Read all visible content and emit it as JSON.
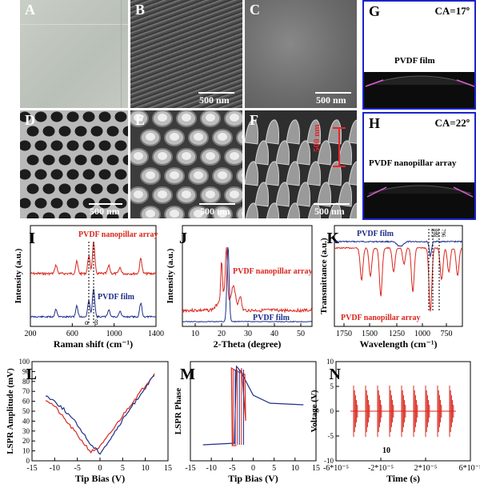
{
  "panels": {
    "A": {
      "label": "A"
    },
    "B": {
      "label": "B",
      "scale": "500 nm"
    },
    "C": {
      "label": "C",
      "scale": "500 nm"
    },
    "D": {
      "label": "D",
      "scale": "500 nm"
    },
    "E": {
      "label": "E",
      "scale": "500 nm"
    },
    "F": {
      "label": "F",
      "scale": "500 nm",
      "height_scale": "500 nm"
    },
    "G": {
      "label": "G",
      "ca": "CA=17º",
      "caption": "PVDF film"
    },
    "H": {
      "label": "H",
      "ca": "CA=22º",
      "caption": "PVDF nanopillar array"
    }
  },
  "chart_data": [
    {
      "id": "I",
      "type": "line",
      "xlabel": "Raman shift (cm⁻¹)",
      "ylabel": "Intensity (a.u.)",
      "xticks": [
        "200",
        "600",
        "1000",
        "1400"
      ],
      "series": [
        {
          "name": "PVDF nanopillar array",
          "color": "#d9281e"
        },
        {
          "name": "PVDF film",
          "color": "#1f2f8a"
        }
      ],
      "annotations": [
        "α",
        "β"
      ]
    },
    {
      "id": "J",
      "type": "line",
      "xlabel": "2-Theta (degree)",
      "ylabel": "Intensity (a.u.)",
      "xticks": [
        "10",
        "20",
        "30",
        "40",
        "50"
      ],
      "series": [
        {
          "name": "PVDF nanopillar array",
          "color": "#d9281e"
        },
        {
          "name": "PVDF film",
          "color": "#1f2f8a"
        }
      ]
    },
    {
      "id": "K",
      "type": "line",
      "xlabel": "Wavelength (cm⁻¹)",
      "ylabel": "Transmittance (a.u.)",
      "xticks": [
        "1750",
        "1500",
        "1250",
        "1000",
        "750"
      ],
      "series": [
        {
          "name": "PVDF film",
          "color": "#1f2f8a"
        },
        {
          "name": "PVDF nanopillar array",
          "color": "#d9281e"
        }
      ],
      "annotations": [
        "879",
        "840",
        "796"
      ]
    },
    {
      "id": "L",
      "type": "line",
      "xlabel": "Tip Bias (V)",
      "ylabel": "LSPR Amplitude (mV)",
      "xticks": [
        "-15",
        "-10",
        "-5",
        "0",
        "5",
        "10",
        "15"
      ],
      "yticks": [
        "0",
        "10",
        "20",
        "30",
        "40",
        "50",
        "60",
        "70",
        "80",
        "90",
        "100"
      ],
      "xlim": [
        -15,
        15
      ],
      "ylim": [
        0,
        100
      ],
      "series": [
        {
          "color": "#d9281e",
          "x": [
            -12,
            -10,
            -8,
            -6,
            -4,
            -2,
            0,
            2,
            4,
            6,
            8,
            10,
            12
          ],
          "y": [
            62,
            55,
            43,
            32,
            20,
            9,
            14,
            26,
            39,
            52,
            64,
            76,
            88
          ]
        },
        {
          "color": "#1f2f8a",
          "x": [
            -12,
            -10,
            -8,
            -6,
            -4,
            -2,
            0,
            2,
            4,
            6,
            8,
            10,
            12
          ],
          "y": [
            66,
            60,
            52,
            42,
            30,
            16,
            8,
            20,
            34,
            48,
            61,
            74,
            86
          ]
        }
      ]
    },
    {
      "id": "M",
      "type": "line",
      "xlabel": "Tip Bias (V)",
      "ylabel": "LSPR Phase",
      "xticks": [
        "-15",
        "-10",
        "-5",
        "0",
        "5",
        "10",
        "15"
      ],
      "xlim": [
        -15,
        15
      ]
    },
    {
      "id": "N",
      "type": "line",
      "xlabel": "Time (s)",
      "ylabel": "Voltage (V)",
      "xticks": [
        "-6*10⁻⁵",
        "-2*10⁻⁵",
        "2*10⁻⁵",
        "6*10⁻⁵"
      ],
      "yticks": [
        "10",
        "5",
        "0",
        "-5",
        "-10"
      ],
      "annotations": [
        "10"
      ]
    }
  ]
}
